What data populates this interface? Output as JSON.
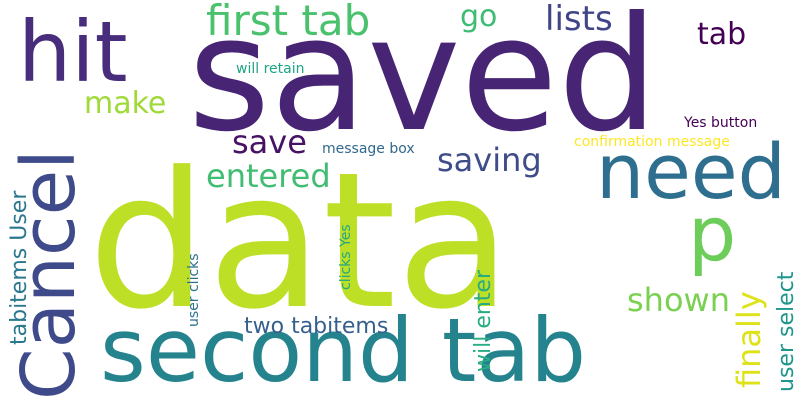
{
  "words": [
    {
      "text": "data",
      "color": "#bddf26"
    },
    {
      "text": "saved",
      "color": "#482475"
    },
    {
      "text": "second tab",
      "color": "#25838e"
    },
    {
      "text": "need",
      "color": "#2e6e8e"
    },
    {
      "text": "Cancel",
      "color": "#3e4a89"
    },
    {
      "text": "hit",
      "color": "#472d7b"
    },
    {
      "text": "p",
      "color": "#6ccd5a"
    },
    {
      "text": "first tab",
      "color": "#4ac16d"
    },
    {
      "text": "lists",
      "color": "#414487"
    },
    {
      "text": "go",
      "color": "#3dbc74"
    },
    {
      "text": "tab",
      "color": "#440154"
    },
    {
      "text": "make",
      "color": "#a0da39"
    },
    {
      "text": "save",
      "color": "#471164"
    },
    {
      "text": "saving",
      "color": "#3e4c8a"
    },
    {
      "text": "entered",
      "color": "#40bd72"
    },
    {
      "text": "shown",
      "color": "#7ad151"
    },
    {
      "text": "finally",
      "color": "#dde318"
    },
    {
      "text": "two tabitems",
      "color": "#355f8d"
    },
    {
      "text": "tabitems User",
      "color": "#2a788e"
    },
    {
      "text": "will enter",
      "color": "#27ad81"
    },
    {
      "text": "user select",
      "color": "#1f968b"
    },
    {
      "text": "will retain",
      "color": "#20a486"
    },
    {
      "text": "Yes button",
      "color": "#440154"
    },
    {
      "text": "confirmation message",
      "color": "#fde725"
    },
    {
      "text": "message box",
      "color": "#31688e"
    },
    {
      "text": "clicks Yes",
      "color": "#22a884"
    },
    {
      "text": "user clicks",
      "color": "#2c728e"
    }
  ]
}
